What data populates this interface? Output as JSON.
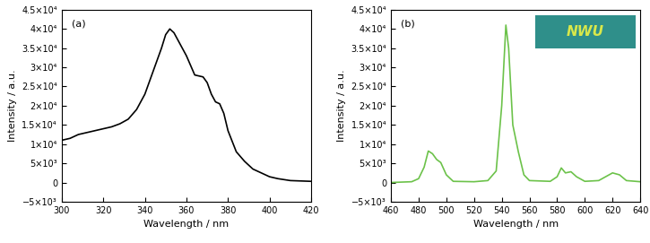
{
  "chart_data": [
    {
      "type": "line",
      "annotation": "(a)",
      "x_label": "Wavelength / nm",
      "y_label": "Intensity / a.u.",
      "x": [
        300,
        304,
        308,
        312,
        316,
        320,
        324,
        328,
        332,
        336,
        340,
        344,
        348,
        350,
        352,
        354,
        356,
        360,
        364,
        368,
        370,
        372,
        374,
        376,
        378,
        380,
        384,
        388,
        392,
        396,
        400,
        404,
        410,
        420
      ],
      "values": [
        11000,
        11500,
        12500,
        13000,
        13500,
        14000,
        14500,
        15300,
        16500,
        19000,
        23000,
        29000,
        35000,
        38500,
        40000,
        39000,
        37000,
        33000,
        28000,
        27500,
        26000,
        23000,
        21000,
        20500,
        18000,
        13500,
        8000,
        5500,
        3500,
        2500,
        1500,
        1000,
        500,
        300
      ],
      "color": "#000000",
      "xlim": [
        300,
        420
      ],
      "xticks": [
        300,
        320,
        340,
        360,
        380,
        400,
        420
      ],
      "ylim": [
        -5000,
        45000
      ],
      "yticks": [
        {
          "value": -5000,
          "label": "−5×10³"
        },
        0,
        {
          "value": 5000,
          "label": "5×10³"
        },
        {
          "value": 10000,
          "label": "1×10⁴"
        },
        {
          "value": 15000,
          "label": "1.5×10⁴"
        },
        {
          "value": 20000,
          "label": "2×10⁴"
        },
        {
          "value": 25000,
          "label": "2.5×10⁴"
        },
        {
          "value": 30000,
          "label": "3×10⁴"
        },
        {
          "value": 35000,
          "label": "3.5×10⁴"
        },
        {
          "value": 40000,
          "label": "4×10⁴"
        },
        {
          "value": 45000,
          "label": "4.5×10⁴"
        }
      ]
    },
    {
      "type": "line",
      "annotation": "(b)",
      "inset_text": "NWU",
      "x_label": "Wavelength / nm",
      "y_label": "Intensity / a.u.",
      "x": [
        460,
        475,
        480,
        484,
        487,
        490,
        493,
        496,
        500,
        505,
        520,
        530,
        536,
        540,
        543,
        545,
        548,
        552,
        556,
        560,
        575,
        580,
        583,
        586,
        590,
        594,
        600,
        610,
        615,
        620,
        625,
        630,
        640
      ],
      "values": [
        0,
        200,
        1000,
        4000,
        8200,
        7500,
        6000,
        5200,
        2000,
        300,
        200,
        500,
        3000,
        20000,
        41000,
        35000,
        15000,
        8000,
        2000,
        500,
        300,
        1500,
        3800,
        2500,
        2800,
        1500,
        300,
        500,
        1500,
        2500,
        2000,
        500,
        200
      ],
      "color": "#6cc24a",
      "xlim": [
        460,
        640
      ],
      "xticks": [
        460,
        480,
        500,
        520,
        540,
        560,
        580,
        600,
        620,
        640
      ],
      "ylim": [
        -5000,
        45000
      ],
      "yticks": [
        {
          "value": -5000,
          "label": "−5×10³"
        },
        0,
        {
          "value": 5000,
          "label": "5×10³"
        },
        {
          "value": 10000,
          "label": "1×10⁴"
        },
        {
          "value": 15000,
          "label": "1.5×10⁴"
        },
        {
          "value": 20000,
          "label": "2×10⁴"
        },
        {
          "value": 25000,
          "label": "2.5×10⁴"
        },
        {
          "value": 30000,
          "label": "3×10⁴"
        },
        {
          "value": 35000,
          "label": "3.5×10⁴"
        },
        {
          "value": 40000,
          "label": "4×10⁴"
        },
        {
          "value": 45000,
          "label": "4.5×10⁴"
        }
      ]
    }
  ]
}
